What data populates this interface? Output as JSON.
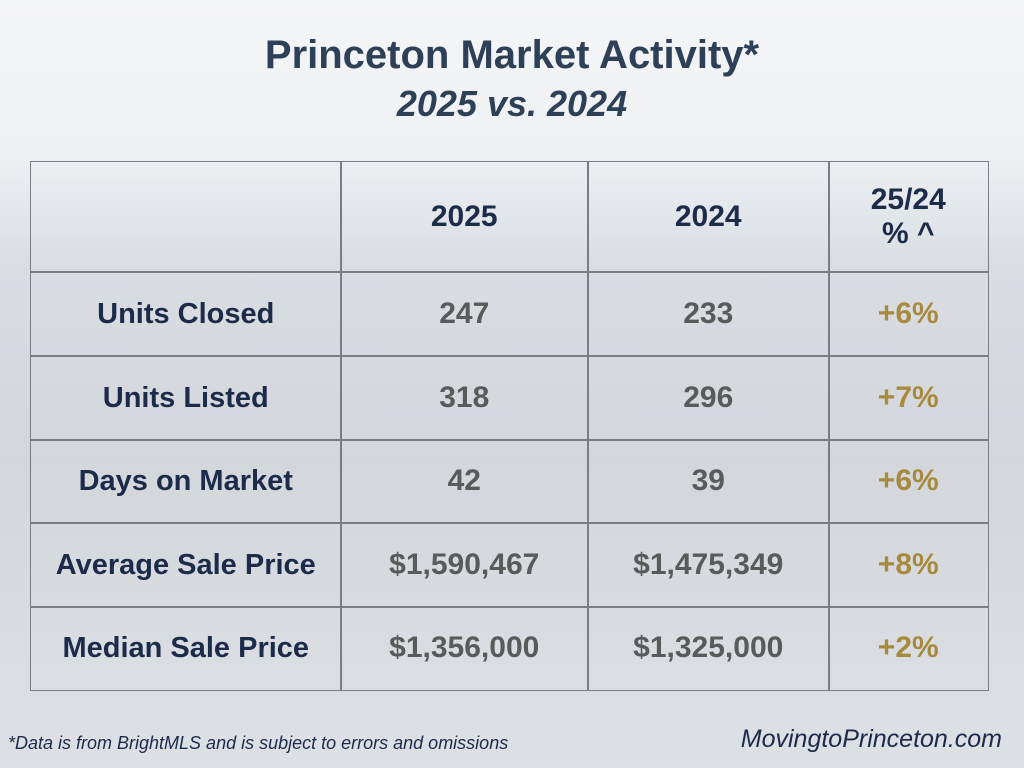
{
  "header": {
    "title": "Princeton Market Activity*",
    "subtitle": "2025 vs. 2024"
  },
  "table": {
    "columns": [
      "2025",
      "2024",
      "25/24\n% ^"
    ],
    "rows": [
      [
        "Units Closed",
        "247",
        "233",
        "+6%"
      ],
      [
        "Units Listed",
        "318",
        "296",
        "+7%"
      ],
      [
        "Days on Market",
        "42",
        "39",
        "+6%"
      ],
      [
        "Average Sale Price",
        "$1,590,467",
        "$1,475,349",
        "+8%"
      ],
      [
        "Median Sale Price",
        "$1,356,000",
        "$1,325,000",
        "+2%"
      ]
    ]
  },
  "footer": {
    "note": "*Data is from BrightMLS and is subject to errors and omissions",
    "site": "MovingtoPrinceton.com"
  }
}
